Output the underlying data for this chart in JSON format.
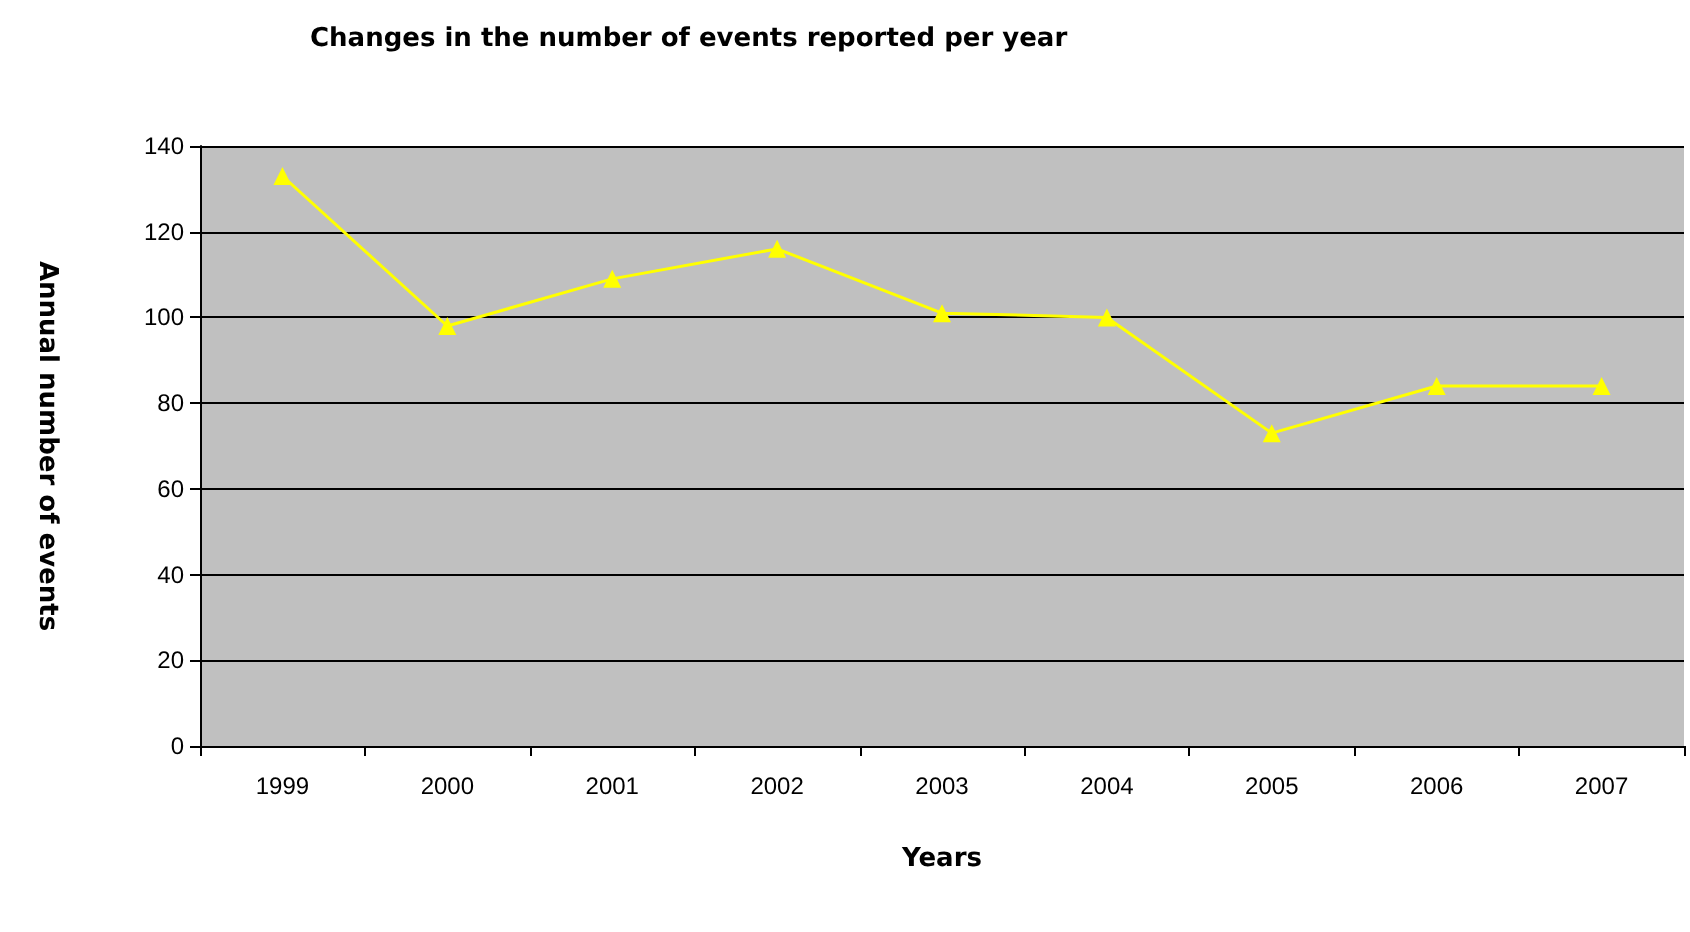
{
  "chart_data": {
    "type": "line",
    "title": "Changes in the number of events reported per year",
    "xlabel": "Years",
    "ylabel": "Annual number of events",
    "categories": [
      "1999",
      "2000",
      "2001",
      "2002",
      "2003",
      "2004",
      "2005",
      "2006",
      "2007"
    ],
    "series": [
      {
        "color": "#ffff00",
        "values": [
          133,
          98,
          109,
          116,
          101,
          100,
          73,
          84,
          84
        ]
      }
    ],
    "ylim": [
      0,
      140
    ],
    "yticks": [
      0,
      20,
      40,
      60,
      80,
      100,
      120,
      140
    ],
    "grid": "y",
    "marker": "triangle",
    "line_style": "solid"
  }
}
